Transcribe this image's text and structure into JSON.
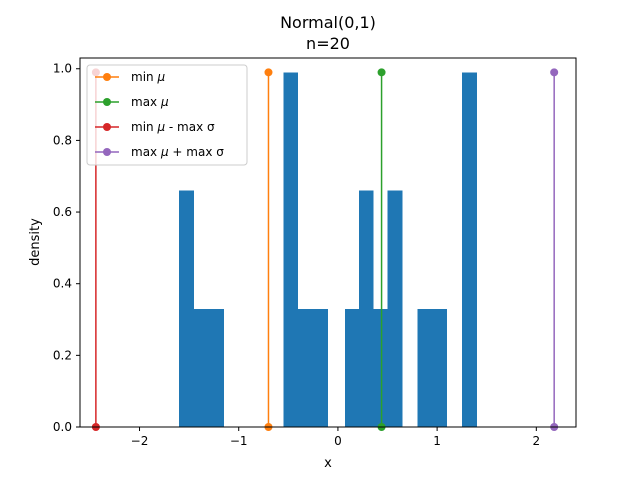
{
  "chart_data": {
    "type": "bar",
    "title": "Normal(0,1)",
    "subtitle": "n=20",
    "xlabel": "x",
    "ylabel": "density",
    "xlim": [
      -2.6,
      2.4
    ],
    "ylim": [
      0,
      1.03
    ],
    "xticks": [
      -2,
      -1,
      0,
      1,
      2
    ],
    "xtick_labels": [
      "−2",
      "−1",
      "0",
      "1",
      "2"
    ],
    "yticks": [
      0.0,
      0.2,
      0.4,
      0.6,
      0.8,
      1.0
    ],
    "ytick_labels": [
      "0.0",
      "0.2",
      "0.4",
      "0.6",
      "0.8",
      "1.0"
    ],
    "grid": false,
    "legend_position": "top-left",
    "histogram": {
      "color": "#1f77b4",
      "bins": [
        {
          "x0": -1.6,
          "x1": -1.45,
          "density": 0.66
        },
        {
          "x0": -1.45,
          "x1": -1.15,
          "density": 0.33
        },
        {
          "x0": -0.55,
          "x1": -0.4,
          "density": 0.99
        },
        {
          "x0": -0.4,
          "x1": -0.1,
          "density": 0.33
        },
        {
          "x0": 0.07,
          "x1": 0.21,
          "density": 0.33
        },
        {
          "x0": 0.21,
          "x1": 0.36,
          "density": 0.66
        },
        {
          "x0": 0.36,
          "x1": 0.5,
          "density": 0.33
        },
        {
          "x0": 0.5,
          "x1": 0.65,
          "density": 0.66
        },
        {
          "x0": 0.8,
          "x1": 1.1,
          "density": 0.33
        },
        {
          "x0": 1.25,
          "x1": 1.4,
          "density": 0.99
        }
      ]
    },
    "series": [
      {
        "name": "min μ",
        "label_main": "min ",
        "label_sym": "μ",
        "label_tail": "",
        "color": "#ff7f0e",
        "x": -0.7,
        "y": [
          0,
          0.99
        ]
      },
      {
        "name": "max μ",
        "label_main": "max ",
        "label_sym": "μ",
        "label_tail": "",
        "color": "#2ca02c",
        "x": 0.44,
        "y": [
          0,
          0.99
        ]
      },
      {
        "name": "min μ - max σ",
        "label_main": "min ",
        "label_sym": "μ",
        "label_tail": " - max σ",
        "color": "#d62728",
        "x": -2.44,
        "y": [
          0,
          0.99
        ]
      },
      {
        "name": "max μ + max σ",
        "label_main": "max ",
        "label_sym": "μ",
        "label_tail": " + max σ",
        "color": "#9467bd",
        "x": 2.18,
        "y": [
          0,
          0.99
        ]
      }
    ]
  }
}
